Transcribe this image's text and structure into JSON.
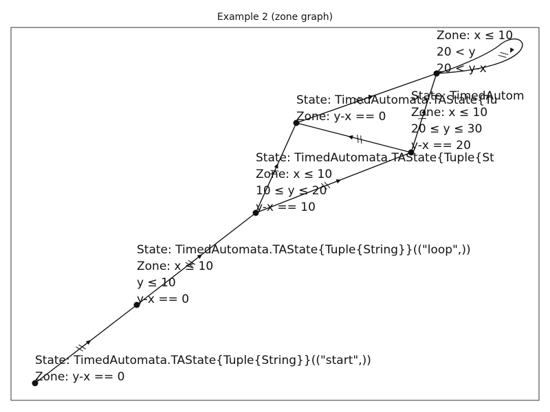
{
  "title": "Example 2 (zone graph)",
  "nodes": [
    {
      "id": "n0",
      "lines": [
        "State: TimedAutomata.TAState{Tuple{String}}((\"start\",))",
        "Zone: y-x == 0"
      ]
    },
    {
      "id": "n1",
      "lines": [
        "State: TimedAutomata.TAState{Tuple{String}}((\"loop\",))",
        "Zone: x ≤ 10",
        "y ≤ 10",
        "y-x == 0"
      ]
    },
    {
      "id": "n2",
      "lines": [
        "State: TimedAutomata.TAState{Tuple{St",
        "Zone: x ≤ 10",
        "10 ≤ y ≤ 20",
        "y-x == 10"
      ]
    },
    {
      "id": "n3",
      "lines": [
        "State: TimedAutomata.TAState{Tu",
        "Zone: y-x == 0"
      ]
    },
    {
      "id": "n4",
      "lines": [
        "State: TimedAutom",
        "Zone: x ≤ 10",
        "20 ≤ y ≤ 30",
        "y-x == 20"
      ]
    },
    {
      "id": "n5",
      "lines": [
        "Zone: x ≤ 10",
        "20 < y",
        "20 < y-x"
      ]
    }
  ],
  "edges": [
    {
      "from": "n0",
      "to": "n1"
    },
    {
      "from": "n1",
      "to": "n2"
    },
    {
      "from": "n2",
      "to": "n3"
    },
    {
      "from": "n2",
      "to": "n4"
    },
    {
      "from": "n4",
      "to": "n3"
    },
    {
      "from": "n3",
      "to": "n5"
    },
    {
      "from": "n4",
      "to": "n5"
    },
    {
      "from": "n5",
      "to": "n5"
    }
  ]
}
